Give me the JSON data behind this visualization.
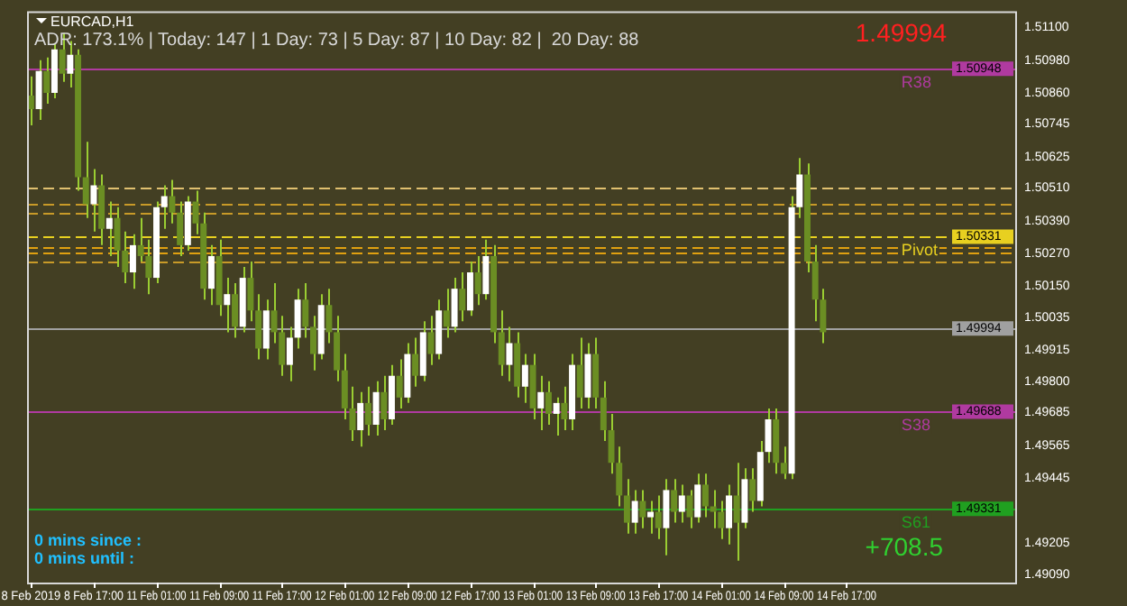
{
  "chart_data": {
    "type": "candlestick",
    "title": "EURCAD,H1",
    "annotations": [
      "ADR: 173.1% | Today: 147 | 1 Day: 73 | 5 Day: 87 | 10 Day: 82 |  20 Day: 88",
      "1.49994",
      "0 mins since :",
      "0 mins until :",
      "+708.5",
      "1.50948",
      "1.50331",
      "1.49994",
      "1.49688",
      "1.49331"
    ],
    "categories": [
      "8 Feb 2019",
      null,
      null,
      null,
      null,
      null,
      null,
      null,
      "8 Feb 17:00",
      null,
      null,
      null,
      null,
      null,
      null,
      null,
      "11 Feb 01:00",
      null,
      null,
      null,
      null,
      null,
      null,
      null,
      "11 Feb 09:00",
      null,
      null,
      null,
      null,
      null,
      null,
      null,
      "11 Feb 17:00",
      null,
      null,
      null,
      null,
      null,
      null,
      null,
      "12 Feb 01:00",
      null,
      null,
      null,
      null,
      null,
      null,
      null,
      "12 Feb 09:00",
      null,
      null,
      null,
      null,
      null,
      null,
      null,
      "12 Feb 17:00",
      null,
      null,
      null,
      null,
      null,
      null,
      null,
      "13 Feb 01:00",
      null,
      null,
      null,
      null,
      null,
      null,
      null,
      "13 Feb 09:00",
      null,
      null,
      null,
      null,
      null,
      null,
      null,
      "13 Feb 17:00",
      null,
      null,
      null,
      null,
      null,
      null,
      null,
      "14 Feb 01:00",
      null,
      null,
      null,
      null,
      null,
      null,
      null,
      "14 Feb 09:00",
      null,
      null,
      null,
      null,
      null,
      null,
      null,
      "14 Feb 17:00",
      null,
      null,
      null,
      null,
      null,
      null,
      null,
      null,
      null,
      null,
      null,
      null,
      null,
      null,
      null,
      null,
      null,
      null,
      null,
      null,
      null
    ],
    "ohlc": [
      [
        1.5085,
        1.5092,
        1.5074,
        1.508
      ],
      [
        1.508,
        1.5098,
        1.5076,
        1.5094
      ],
      [
        1.5094,
        1.5099,
        1.5082,
        1.5086
      ],
      [
        1.5086,
        1.5104,
        1.5084,
        1.5102
      ],
      [
        1.5102,
        1.5108,
        1.509,
        1.5093
      ],
      [
        1.5093,
        1.5105,
        1.5088,
        1.51
      ],
      [
        1.51,
        1.5102,
        1.505,
        1.5055
      ],
      [
        1.5055,
        1.5068,
        1.504,
        1.5045
      ],
      [
        1.5045,
        1.5058,
        1.5035,
        1.5052
      ],
      [
        1.5052,
        1.5056,
        1.503,
        1.5036
      ],
      [
        1.5036,
        1.5046,
        1.5026,
        1.504
      ],
      [
        1.504,
        1.5044,
        1.5022,
        1.5028
      ],
      [
        1.5028,
        1.5035,
        1.5016,
        1.502
      ],
      [
        1.502,
        1.5034,
        1.5014,
        1.503
      ],
      [
        1.503,
        1.504,
        1.5024,
        1.5026
      ],
      [
        1.5026,
        1.5032,
        1.5012,
        1.5018
      ],
      [
        1.5018,
        1.5046,
        1.5016,
        1.5044
      ],
      [
        1.5044,
        1.5052,
        1.5036,
        1.5048
      ],
      [
        1.5048,
        1.5054,
        1.5038,
        1.5042
      ],
      [
        1.5042,
        1.5046,
        1.5026,
        1.503
      ],
      [
        1.503,
        1.5048,
        1.5028,
        1.5046
      ],
      [
        1.5046,
        1.505,
        1.5034,
        1.5038
      ],
      [
        1.5038,
        1.5042,
        1.501,
        1.5014
      ],
      [
        1.5014,
        1.503,
        1.5008,
        1.5026
      ],
      [
        1.5026,
        1.5032,
        1.5004,
        1.5008
      ],
      [
        1.5008,
        1.5018,
        1.4998,
        1.5012
      ],
      [
        1.5012,
        1.5016,
        1.4996,
        1.5
      ],
      [
        1.5,
        1.5022,
        1.4998,
        1.5018
      ],
      [
        1.5018,
        1.5024,
        1.5002,
        1.5006
      ],
      [
        1.5006,
        1.5012,
        1.4988,
        1.4992
      ],
      [
        1.4992,
        1.501,
        1.4988,
        1.5006
      ],
      [
        1.5006,
        1.5016,
        1.4994,
        1.4998
      ],
      [
        1.4998,
        1.5004,
        1.4982,
        1.4986
      ],
      [
        1.4986,
        1.5,
        1.498,
        1.4996
      ],
      [
        1.4996,
        1.5014,
        1.4992,
        1.501
      ],
      [
        1.501,
        1.5016,
        1.4996,
        1.5
      ],
      [
        1.5,
        1.5004,
        1.4984,
        1.499
      ],
      [
        1.499,
        1.5012,
        1.4988,
        1.5008
      ],
      [
        1.5008,
        1.5014,
        1.4994,
        1.4998
      ],
      [
        1.4998,
        1.5004,
        1.498,
        1.4984
      ],
      [
        1.4984,
        1.499,
        1.4966,
        1.497
      ],
      [
        1.497,
        1.4978,
        1.4958,
        1.4962
      ],
      [
        1.4962,
        1.4976,
        1.4956,
        1.4972
      ],
      [
        1.4972,
        1.4978,
        1.496,
        1.4964
      ],
      [
        1.4964,
        1.498,
        1.496,
        1.4976
      ],
      [
        1.4976,
        1.4982,
        1.4962,
        1.4966
      ],
      [
        1.4966,
        1.4986,
        1.4964,
        1.4982
      ],
      [
        1.4982,
        1.4988,
        1.497,
        1.4974
      ],
      [
        1.4974,
        1.4994,
        1.4972,
        1.499
      ],
      [
        1.499,
        1.4996,
        1.4978,
        1.4982
      ],
      [
        1.4982,
        1.5002,
        1.498,
        1.4998
      ],
      [
        1.4998,
        1.5004,
        1.4986,
        1.499
      ],
      [
        1.499,
        1.501,
        1.4988,
        1.5006
      ],
      [
        1.5006,
        1.5014,
        1.4996,
        1.5
      ],
      [
        1.5,
        1.5018,
        1.4998,
        1.5014
      ],
      [
        1.5014,
        1.502,
        1.5002,
        1.5006
      ],
      [
        1.5006,
        1.5024,
        1.5004,
        1.502
      ],
      [
        1.502,
        1.5026,
        1.5008,
        1.5012
      ],
      [
        1.5012,
        1.5032,
        1.501,
        1.5026
      ],
      [
        1.5026,
        1.503,
        1.4994,
        1.4998
      ],
      [
        1.4998,
        1.5006,
        1.4982,
        1.4986
      ],
      [
        1.4986,
        1.5,
        1.498,
        1.4994
      ],
      [
        1.4994,
        1.4998,
        1.4974,
        1.4978
      ],
      [
        1.4978,
        1.499,
        1.4972,
        1.4986
      ],
      [
        1.4986,
        1.499,
        1.4966,
        1.497
      ],
      [
        1.497,
        1.4982,
        1.4962,
        1.4976
      ],
      [
        1.4976,
        1.498,
        1.4964,
        1.4968
      ],
      [
        1.4968,
        1.4974,
        1.496,
        1.4972
      ],
      [
        1.4972,
        1.4978,
        1.4962,
        1.4966
      ],
      [
        1.4966,
        1.499,
        1.4962,
        1.4986
      ],
      [
        1.4986,
        1.4996,
        1.497,
        1.4974
      ],
      [
        1.4974,
        1.4994,
        1.497,
        1.499
      ],
      [
        1.499,
        1.4996,
        1.497,
        1.4974
      ],
      [
        1.4974,
        1.498,
        1.4958,
        1.4962
      ],
      [
        1.4962,
        1.4968,
        1.4946,
        1.495
      ],
      [
        1.495,
        1.4956,
        1.4934,
        1.4938
      ],
      [
        1.4938,
        1.4944,
        1.4924,
        1.4928
      ],
      [
        1.4928,
        1.494,
        1.4924,
        1.4936
      ],
      [
        1.4936,
        1.494,
        1.4926,
        1.493
      ],
      [
        1.493,
        1.4936,
        1.4924,
        1.4932
      ],
      [
        1.4932,
        1.4938,
        1.4922,
        1.4926
      ],
      [
        1.4926,
        1.4944,
        1.4916,
        1.494
      ],
      [
        1.494,
        1.4944,
        1.4928,
        1.4932
      ],
      [
        1.4932,
        1.4942,
        1.4928,
        1.4938
      ],
      [
        1.4938,
        1.494,
        1.4926,
        1.493
      ],
      [
        1.493,
        1.4946,
        1.4928,
        1.4942
      ],
      [
        1.4942,
        1.4946,
        1.493,
        1.4934
      ],
      [
        1.4934,
        1.494,
        1.4926,
        1.4932
      ],
      [
        1.4932,
        1.4936,
        1.4922,
        1.4926
      ],
      [
        1.4926,
        1.4942,
        1.492,
        1.4938
      ],
      [
        1.4938,
        1.495,
        1.4914,
        1.4928
      ],
      [
        1.4928,
        1.4948,
        1.4926,
        1.4944
      ],
      [
        1.4944,
        1.4948,
        1.4932,
        1.4936
      ],
      [
        1.4936,
        1.4958,
        1.4934,
        1.4954
      ],
      [
        1.4954,
        1.497,
        1.495,
        1.4966
      ],
      [
        1.4966,
        1.497,
        1.4946,
        1.495
      ],
      [
        1.495,
        1.4956,
        1.4944,
        1.4946
      ],
      [
        1.4946,
        1.5048,
        1.4944,
        1.5044
      ],
      [
        1.5044,
        1.5062,
        1.504,
        1.5056
      ],
      [
        1.5056,
        1.506,
        1.502,
        1.5024
      ],
      [
        1.5024,
        1.503,
        1.5002,
        1.501
      ],
      [
        1.501,
        1.5014,
        1.4994,
        1.4998
      ],
      null,
      null,
      null,
      null,
      null,
      null,
      null,
      null,
      null,
      null,
      null,
      null,
      null,
      null,
      null,
      null,
      null,
      null,
      null,
      null,
      null,
      null,
      null,
      null
    ],
    "ylim": [
      1.4906,
      1.5116
    ],
    "yticks": [
      {
        "value": 1.511,
        "label": "1.51100"
      },
      {
        "value": 1.5098,
        "label": "1.50980"
      },
      {
        "value": 1.5086,
        "label": "1.50860"
      },
      {
        "value": 1.50745,
        "label": "1.50745"
      },
      {
        "value": 1.50625,
        "label": "1.50625"
      },
      {
        "value": 1.5051,
        "label": "1.50510"
      },
      {
        "value": 1.5039,
        "label": "1.50390"
      },
      {
        "value": 1.5027,
        "label": "1.50270"
      },
      {
        "value": 1.5015,
        "label": "1.50150"
      },
      {
        "value": 1.50035,
        "label": "1.50035"
      },
      {
        "value": 1.49915,
        "label": "1.49915"
      },
      {
        "value": 1.498,
        "label": "1.49800"
      },
      {
        "value": 1.49685,
        "label": "1.49685"
      },
      {
        "value": 1.49565,
        "label": "1.49565"
      },
      {
        "value": 1.49445,
        "label": "1.49445"
      },
      {
        "value": 1.49205,
        "label": "1.49205"
      },
      {
        "value": 1.4909,
        "label": "1.49090"
      }
    ],
    "ref_lines": [
      {
        "axis": "y",
        "value": 1.50948,
        "label": "R38",
        "color": "#b03aa0",
        "line_style": "solid"
      },
      {
        "axis": "y",
        "value": 1.5051,
        "color": "#e0c070",
        "line_style": "dashed"
      },
      {
        "axis": "y",
        "value": 1.5045,
        "color": "#c89a28",
        "line_style": "dashed"
      },
      {
        "axis": "y",
        "value": 1.5042,
        "color": "#c89a28",
        "line_style": "dashed"
      },
      {
        "axis": "y",
        "value": 1.50331,
        "label": "Pivot",
        "color": "#e8d020",
        "line_style": "dashed"
      },
      {
        "axis": "y",
        "value": 1.5029,
        "color": "#e0a010",
        "line_style": "dashed"
      },
      {
        "axis": "y",
        "value": 1.5027,
        "color": "#e0a010",
        "line_style": "dashed"
      },
      {
        "axis": "y",
        "value": 1.5024,
        "color": "#c89a28",
        "line_style": "dashed"
      },
      {
        "axis": "y",
        "value": 1.49994,
        "color": "#a0a0a0",
        "line_style": "solid"
      },
      {
        "axis": "y",
        "value": 1.49688,
        "label": "S38",
        "color": "#b03aa0",
        "line_style": "solid"
      },
      {
        "axis": "y",
        "value": 1.49331,
        "label": "S61",
        "color": "#20a020",
        "line_style": "solid"
      }
    ],
    "grid": false,
    "legend": false
  }
}
